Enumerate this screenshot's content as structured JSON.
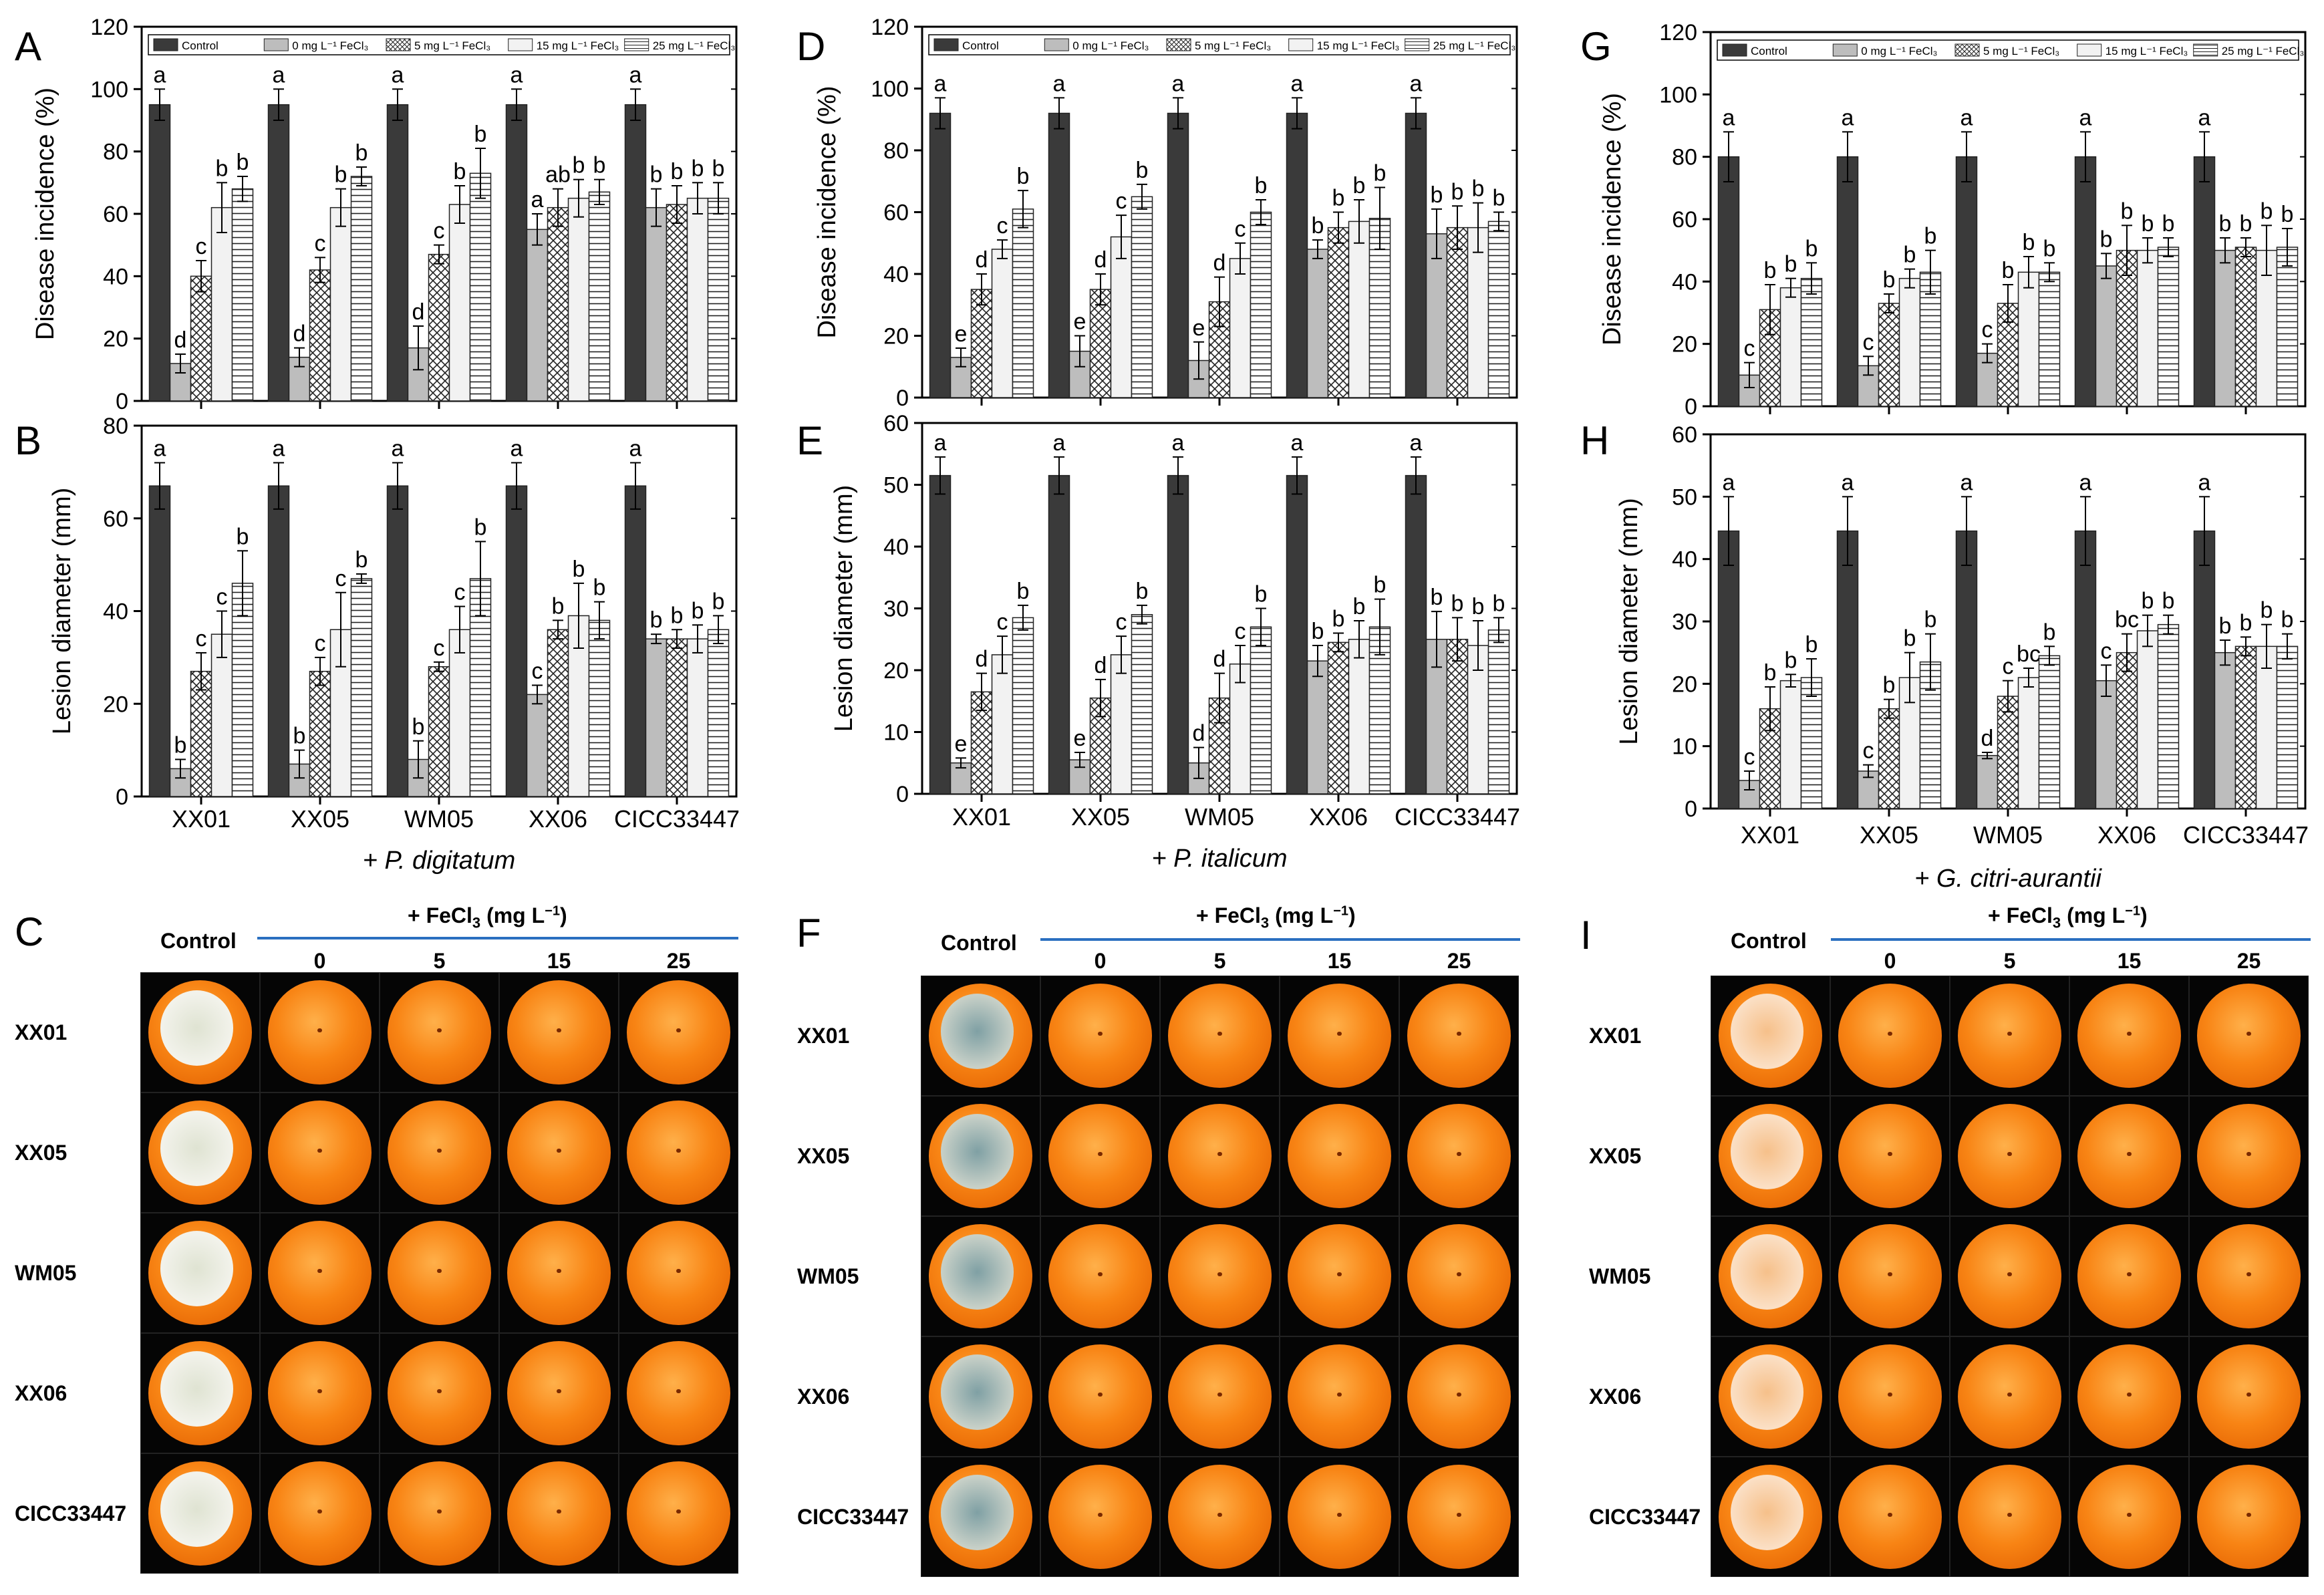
{
  "panels_ab": {
    "letters": {
      "A": "A",
      "B": "B",
      "C": "C",
      "D": "D",
      "E": "E",
      "F": "F",
      "G": "G",
      "H": "H",
      "I": "I"
    }
  },
  "legend": [
    "Control",
    "0 mg L⁻¹ FeCl₃",
    "5 mg L⁻¹ FeCl₃",
    "15 mg L⁻¹ FeCl₃",
    "25 mg L⁻¹ FeCl₃"
  ],
  "x_categories": [
    "XX01",
    "XX05",
    "WM05",
    "XX06",
    "CICC33447"
  ],
  "pathogen_labels": [
    "+ P. digitatum",
    "+ P. italicum",
    "+ G. citri-aurantii"
  ],
  "photo_grid": {
    "control_label": "Control",
    "fecl3_header": "+ FeCl",
    "fecl3_sub": "3",
    "fecl3_unit": " (mg L",
    "fecl3_exp": "−1",
    "fecl3_close": ")",
    "columns": [
      "0",
      "5",
      "15",
      "25"
    ],
    "rows": [
      "XX01",
      "XX05",
      "WM05",
      "XX06",
      "CICC33447"
    ]
  },
  "chart_data": [
    {
      "id": "A",
      "type": "bar",
      "ylabel": "Disease incidence (%)",
      "ylim": [
        0,
        120
      ],
      "yticks": [
        0,
        20,
        40,
        60,
        80,
        100,
        120
      ],
      "categories": [
        "XX01",
        "XX05",
        "WM05",
        "XX06",
        "CICC33447"
      ],
      "series": [
        {
          "name": "Control",
          "values": [
            95,
            95,
            95,
            95,
            95
          ],
          "err": [
            5,
            5,
            5,
            5,
            5
          ],
          "letters": [
            "a",
            "a",
            "a",
            "a",
            "a"
          ]
        },
        {
          "name": "0 mg L⁻¹ FeCl₃",
          "values": [
            12,
            14,
            17,
            55,
            62
          ],
          "err": [
            3,
            3,
            7,
            5,
            6
          ],
          "letters": [
            "d",
            "d",
            "d",
            "a",
            "b"
          ]
        },
        {
          "name": "5 mg L⁻¹ FeCl₃",
          "values": [
            40,
            42,
            47,
            62,
            63
          ],
          "err": [
            5,
            4,
            3,
            6,
            6
          ],
          "letters": [
            "c",
            "c",
            "c",
            "ab",
            "b"
          ]
        },
        {
          "name": "15 mg L⁻¹ FeCl₃",
          "values": [
            62,
            62,
            63,
            65,
            65
          ],
          "err": [
            8,
            6,
            6,
            6,
            5
          ],
          "letters": [
            "b",
            "b",
            "b",
            "b",
            "b"
          ]
        },
        {
          "name": "25 mg L⁻¹ FeCl₃",
          "values": [
            68,
            72,
            73,
            67,
            65
          ],
          "err": [
            4,
            3,
            8,
            4,
            5
          ],
          "letters": [
            "b",
            "b",
            "b",
            "b",
            "b"
          ]
        }
      ]
    },
    {
      "id": "B",
      "type": "bar",
      "ylabel": "Lesion diameter (mm)",
      "ylim": [
        0,
        80
      ],
      "yticks": [
        0,
        20,
        40,
        60,
        80
      ],
      "categories": [
        "XX01",
        "XX05",
        "WM05",
        "XX06",
        "CICC33447"
      ],
      "xlabel": "+ P. digitatum",
      "series": [
        {
          "name": "Control",
          "values": [
            67,
            67,
            67,
            67,
            67
          ],
          "err": [
            5,
            5,
            5,
            5,
            5
          ],
          "letters": [
            "a",
            "a",
            "a",
            "a",
            "a"
          ]
        },
        {
          "name": "0 mg L⁻¹ FeCl₃",
          "values": [
            6,
            7,
            8,
            22,
            34
          ],
          "err": [
            2,
            3,
            4,
            2,
            1
          ],
          "letters": [
            "b",
            "b",
            "b",
            "c",
            "b"
          ]
        },
        {
          "name": "5 mg L⁻¹ FeCl₃",
          "values": [
            27,
            27,
            28,
            36,
            34
          ],
          "err": [
            4,
            3,
            1,
            2,
            2
          ],
          "letters": [
            "c",
            "c",
            "c",
            "b",
            "b"
          ]
        },
        {
          "name": "15 mg L⁻¹ FeCl₃",
          "values": [
            35,
            36,
            36,
            39,
            34
          ],
          "err": [
            5,
            8,
            5,
            7,
            3
          ],
          "letters": [
            "c",
            "c",
            "c",
            "b",
            "b"
          ]
        },
        {
          "name": "25 mg L⁻¹ FeCl₃",
          "values": [
            46,
            47,
            47,
            38,
            36
          ],
          "err": [
            7,
            1,
            8,
            4,
            3
          ],
          "letters": [
            "b",
            "b",
            "b",
            "b",
            "b"
          ]
        }
      ]
    },
    {
      "id": "D",
      "type": "bar",
      "ylabel": "Disease incidence (%)",
      "ylim": [
        0,
        120
      ],
      "yticks": [
        0,
        20,
        40,
        60,
        80,
        100,
        120
      ],
      "categories": [
        "XX01",
        "XX05",
        "WM05",
        "XX06",
        "CICC33447"
      ],
      "series": [
        {
          "name": "Control",
          "values": [
            92,
            92,
            92,
            92,
            92
          ],
          "err": [
            5,
            5,
            5,
            5,
            5
          ],
          "letters": [
            "a",
            "a",
            "a",
            "a",
            "a"
          ]
        },
        {
          "name": "0 mg L⁻¹ FeCl₃",
          "values": [
            13,
            15,
            12,
            48,
            53
          ],
          "err": [
            3,
            5,
            6,
            3,
            8
          ],
          "letters": [
            "e",
            "e",
            "e",
            "b",
            "b"
          ]
        },
        {
          "name": "5 mg L⁻¹ FeCl₃",
          "values": [
            35,
            35,
            31,
            55,
            55
          ],
          "err": [
            5,
            5,
            8,
            5,
            7
          ],
          "letters": [
            "d",
            "d",
            "d",
            "b",
            "b"
          ]
        },
        {
          "name": "15 mg L⁻¹ FeCl₃",
          "values": [
            48,
            52,
            45,
            57,
            55
          ],
          "err": [
            3,
            7,
            5,
            7,
            8
          ],
          "letters": [
            "c",
            "c",
            "c",
            "b",
            "b"
          ]
        },
        {
          "name": "25 mg L⁻¹ FeCl₃",
          "values": [
            61,
            65,
            60,
            58,
            57
          ],
          "err": [
            6,
            4,
            4,
            10,
            3
          ],
          "letters": [
            "b",
            "b",
            "b",
            "b",
            "b"
          ]
        }
      ]
    },
    {
      "id": "E",
      "type": "bar",
      "ylabel": "Lesion diameter (mm)",
      "ylim": [
        0,
        60
      ],
      "yticks": [
        0,
        10,
        20,
        30,
        40,
        50,
        60
      ],
      "categories": [
        "XX01",
        "XX05",
        "WM05",
        "XX06",
        "CICC33447"
      ],
      "xlabel": "+ P. italicum",
      "series": [
        {
          "name": "Control",
          "values": [
            51.5,
            51.5,
            51.5,
            51.5,
            51.5
          ],
          "err": [
            3,
            3,
            3,
            3,
            3
          ],
          "letters": [
            "a",
            "a",
            "a",
            "a",
            "a"
          ]
        },
        {
          "name": "0 mg L⁻¹ FeCl₃",
          "values": [
            5,
            5.5,
            5,
            21.5,
            25
          ],
          "err": [
            0.8,
            1.2,
            2.5,
            2.5,
            4.5
          ],
          "letters": [
            "e",
            "e",
            "d",
            "b",
            "b"
          ]
        },
        {
          "name": "5 mg L⁻¹ FeCl₃",
          "values": [
            16.5,
            15.5,
            15.5,
            24.5,
            25
          ],
          "err": [
            3,
            3,
            4,
            1.5,
            3.5
          ],
          "letters": [
            "d",
            "d",
            "d",
            "b",
            "b"
          ]
        },
        {
          "name": "15 mg L⁻¹ FeCl₃",
          "values": [
            22.5,
            22.5,
            21,
            25,
            24
          ],
          "err": [
            3,
            3,
            3,
            3,
            4
          ],
          "letters": [
            "c",
            "c",
            "c",
            "b",
            "b"
          ]
        },
        {
          "name": "25 mg L⁻¹ FeCl₃",
          "values": [
            28.5,
            29,
            27,
            27,
            26.5
          ],
          "err": [
            2,
            1.5,
            3,
            4.5,
            2
          ],
          "letters": [
            "b",
            "b",
            "b",
            "b",
            "b"
          ]
        }
      ]
    },
    {
      "id": "G",
      "type": "bar",
      "ylabel": "Disease incidence (%)",
      "ylim": [
        0,
        120
      ],
      "yticks": [
        0,
        20,
        40,
        60,
        80,
        100,
        120
      ],
      "categories": [
        "XX01",
        "XX05",
        "WM05",
        "XX06",
        "CICC33447"
      ],
      "series": [
        {
          "name": "Control",
          "values": [
            80,
            80,
            80,
            80,
            80
          ],
          "err": [
            8,
            8,
            8,
            8,
            8
          ],
          "letters": [
            "a",
            "a",
            "a",
            "a",
            "a"
          ]
        },
        {
          "name": "0 mg L⁻¹ FeCl₃",
          "values": [
            10,
            13,
            17,
            45,
            50
          ],
          "err": [
            4,
            3,
            3,
            4,
            4
          ],
          "letters": [
            "c",
            "c",
            "c",
            "b",
            "b"
          ]
        },
        {
          "name": "5 mg L⁻¹ FeCl₃",
          "values": [
            31,
            33,
            33,
            50,
            51
          ],
          "err": [
            8,
            3,
            6,
            8,
            3
          ],
          "letters": [
            "b",
            "b",
            "b",
            "b",
            "b"
          ]
        },
        {
          "name": "15 mg L⁻¹ FeCl₃",
          "values": [
            38,
            41,
            43,
            50,
            50
          ],
          "err": [
            3,
            3,
            5,
            4,
            8
          ],
          "letters": [
            "b",
            "b",
            "b",
            "b",
            "b"
          ]
        },
        {
          "name": "25 mg L⁻¹ FeCl₃",
          "values": [
            41,
            43,
            43,
            51,
            51
          ],
          "err": [
            5,
            7,
            3,
            3,
            6
          ],
          "letters": [
            "b",
            "b",
            "b",
            "b",
            "b"
          ]
        }
      ]
    },
    {
      "id": "H",
      "type": "bar",
      "ylabel": "Lesion diameter (mm)",
      "ylim": [
        0,
        60
      ],
      "yticks": [
        0,
        10,
        20,
        30,
        40,
        50,
        60
      ],
      "categories": [
        "XX01",
        "XX05",
        "WM05",
        "XX06",
        "CICC33447"
      ],
      "xlabel": "+ G. citri-aurantii",
      "series": [
        {
          "name": "Control",
          "values": [
            44.5,
            44.5,
            44.5,
            44.5,
            44.5
          ],
          "err": [
            5.5,
            5.5,
            5.5,
            5.5,
            5.5
          ],
          "letters": [
            "a",
            "a",
            "a",
            "a",
            "a"
          ]
        },
        {
          "name": "0 mg L⁻¹ FeCl₃",
          "values": [
            4.5,
            6,
            8.5,
            20.5,
            25
          ],
          "err": [
            1.5,
            1,
            0.5,
            2.5,
            2
          ],
          "letters": [
            "c",
            "c",
            "d",
            "c",
            "b"
          ]
        },
        {
          "name": "5 mg L⁻¹ FeCl₃",
          "values": [
            16,
            16,
            18,
            25,
            26
          ],
          "err": [
            3.5,
            1.5,
            2.5,
            3,
            1.5
          ],
          "letters": [
            "b",
            "b",
            "c",
            "bc",
            "b"
          ]
        },
        {
          "name": "15 mg L⁻¹ FeCl₃",
          "values": [
            20.5,
            21,
            21,
            28.5,
            26
          ],
          "err": [
            1,
            4,
            1.5,
            2.5,
            3.5
          ],
          "letters": [
            "b",
            "b",
            "bc",
            "b",
            "b"
          ]
        },
        {
          "name": "25 mg L⁻¹ FeCl₃",
          "values": [
            21,
            23.5,
            24.5,
            29.5,
            26
          ],
          "err": [
            3,
            4.5,
            1.5,
            1.5,
            2
          ],
          "letters": [
            "b",
            "b",
            "b",
            "b",
            "b"
          ]
        }
      ]
    }
  ]
}
